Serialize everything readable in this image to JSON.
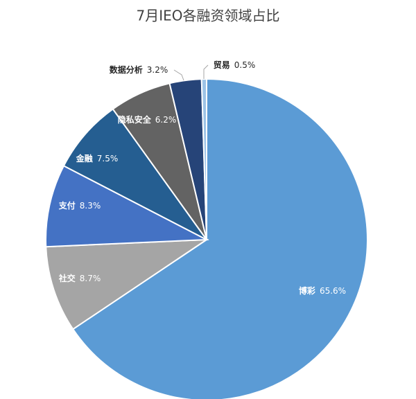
{
  "chart_data": {
    "type": "pie",
    "title": "7月IEO各融资领域占比",
    "categories": [
      "博彩",
      "社交",
      "支付",
      "金融",
      "隐私安全",
      "数据分析",
      "贸易"
    ],
    "values": [
      65.6,
      8.7,
      8.3,
      7.5,
      6.2,
      3.2,
      0.5
    ],
    "value_labels": [
      "65.6%",
      "8.7%",
      "8.3%",
      "7.5%",
      "6.2%",
      "3.2%",
      "0.5%"
    ],
    "colors": [
      "#5b9bd5",
      "#a5a5a5",
      "#4472c4",
      "#255e91",
      "#636363",
      "#264478",
      "#9dc3e6"
    ]
  }
}
